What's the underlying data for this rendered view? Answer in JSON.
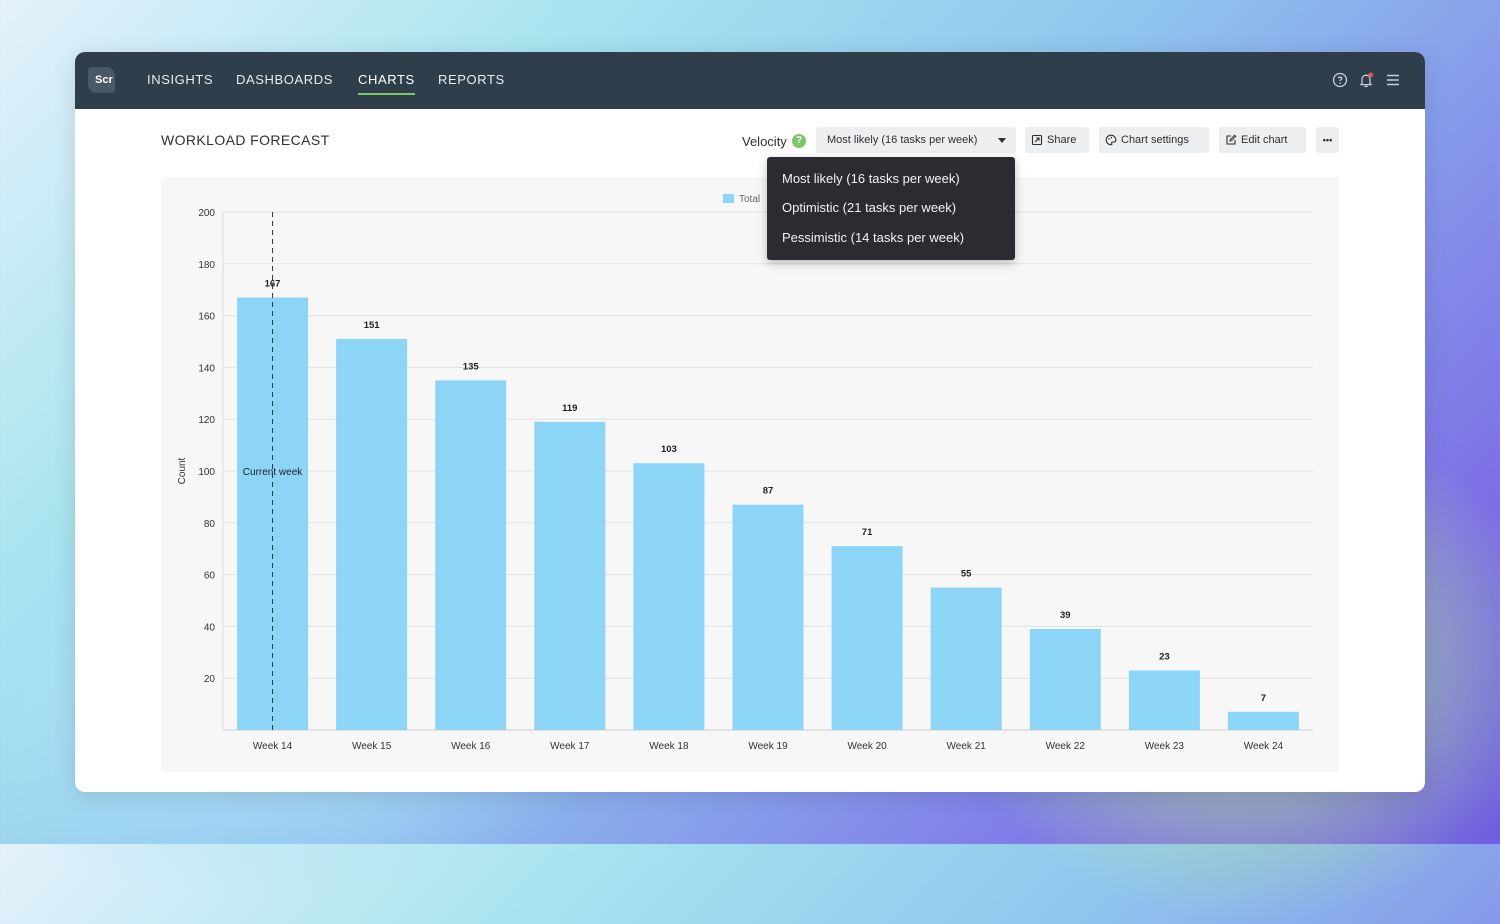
{
  "app": {
    "logo_text": "Scr",
    "nav": [
      {
        "label": "INSIGHTS",
        "active": false
      },
      {
        "label": "DASHBOARDS",
        "active": false
      },
      {
        "label": "CHARTS",
        "active": true
      },
      {
        "label": "REPORTS",
        "active": false
      }
    ],
    "top_icons": [
      "help-circle-icon",
      "bell-icon",
      "hamburger-menu-icon"
    ],
    "accent_color": "#79c96a",
    "notification_dot_color": "#e8505b"
  },
  "page": {
    "title": "WORKLOAD FORECAST"
  },
  "toolbar": {
    "velocity_label": "Velocity",
    "velocity_help": "?",
    "velocity_select_value": "Most likely (16 tasks per week)",
    "share_label": "Share",
    "chart_settings_label": "Chart settings",
    "edit_chart_label": "Edit chart",
    "more_label": "•••"
  },
  "velocity_menu": {
    "open": true,
    "options": [
      "Most likely (16 tasks per week)",
      "Optimistic (21 tasks per week)",
      "Pessimistic (14 tasks per week)"
    ]
  },
  "chart_data": {
    "type": "bar",
    "title": "",
    "xlabel": "",
    "ylabel": "Count",
    "ylim": [
      0,
      200
    ],
    "yticks": [
      20,
      40,
      60,
      80,
      100,
      120,
      140,
      160,
      180,
      200
    ],
    "categories": [
      "Week 14",
      "Week 15",
      "Week 16",
      "Week 17",
      "Week 18",
      "Week 19",
      "Week 20",
      "Week 21",
      "Week 22",
      "Week 23",
      "Week 24"
    ],
    "series": [
      {
        "name": "Total",
        "color": "#8dd5f7",
        "values": [
          167,
          151,
          135,
          119,
          103,
          87,
          71,
          55,
          39,
          23,
          7
        ]
      }
    ],
    "data_labels": true,
    "grid": true,
    "legend": "top-center",
    "annotation": {
      "category": "Week 14",
      "label": "Current week",
      "style": "dashed-vertical-line"
    }
  }
}
